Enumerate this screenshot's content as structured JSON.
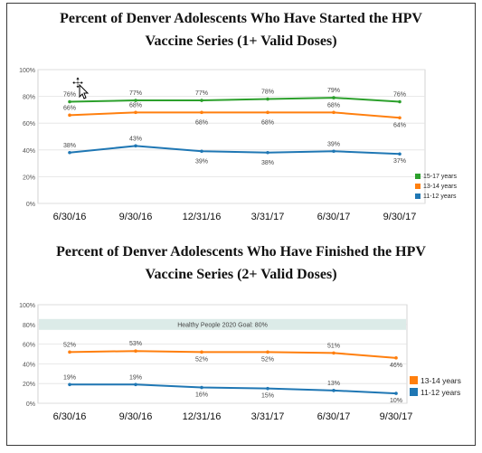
{
  "chart_data": [
    {
      "type": "line",
      "title": "Percent of Denver Adolescents Who Have Started the HPV Vaccine Series (1+ Valid Doses)",
      "title_lines": [
        "Percent of Denver Adolescents Who Have Started the HPV",
        "Vaccine Series (1+ Valid Doses)"
      ],
      "categories": [
        "6/30/16",
        "9/30/16",
        "12/31/16",
        "3/31/17",
        "6/30/17",
        "9/30/17"
      ],
      "y_ticks": [
        "0%",
        "20%",
        "40%",
        "60%",
        "80%",
        "100%"
      ],
      "ylim": [
        0,
        100
      ],
      "grid": true,
      "legend_position": "bottom-right",
      "series": [
        {
          "name": "15-17 years",
          "color": "#2ca02c",
          "values": [
            76,
            77,
            77,
            78,
            79,
            76
          ],
          "labels": [
            "76%",
            "77%",
            "77%",
            "78%",
            "79%",
            "76%"
          ]
        },
        {
          "name": "13-14 years",
          "color": "#ff7f0e",
          "values": [
            66,
            68,
            68,
            68,
            68,
            64
          ],
          "labels": [
            "66%",
            "68%",
            "68%",
            "68%",
            "68%",
            "64%"
          ]
        },
        {
          "name": "11-12 years",
          "color": "#1f77b4",
          "values": [
            38,
            43,
            39,
            38,
            39,
            37
          ],
          "labels": [
            "38%",
            "43%",
            "39%",
            "38%",
            "39%",
            "37%"
          ]
        }
      ]
    },
    {
      "type": "line",
      "title": "Percent of Denver Adolescents Who Have Finished the HPV Vaccine Series (2+ Valid Doses)",
      "title_lines": [
        "Percent of Denver Adolescents Who Have Finished the HPV",
        "Vaccine Series (2+ Valid Doses)"
      ],
      "categories": [
        "6/30/16",
        "9/30/16",
        "12/31/16",
        "3/31/17",
        "6/30/17",
        "9/30/17"
      ],
      "y_ticks": [
        "0%",
        "20%",
        "40%",
        "60%",
        "80%",
        "100%"
      ],
      "ylim": [
        0,
        100
      ],
      "grid": true,
      "legend_position": "bottom-right",
      "goal_band": {
        "label": "Healthy People 2020 Goal: 80%",
        "value": 80,
        "color": "#dcebe8"
      },
      "series": [
        {
          "name": "13-14 years",
          "color": "#ff7f0e",
          "values": [
            52,
            53,
            52,
            52,
            51,
            46
          ],
          "labels": [
            "52%",
            "53%",
            "52%",
            "52%",
            "51%",
            "46%"
          ]
        },
        {
          "name": "11-12 years",
          "color": "#1f77b4",
          "values": [
            19,
            19,
            16,
            15,
            13,
            10
          ],
          "labels": [
            "19%",
            "19%",
            "16%",
            "15%",
            "13%",
            "10%"
          ]
        }
      ]
    }
  ]
}
